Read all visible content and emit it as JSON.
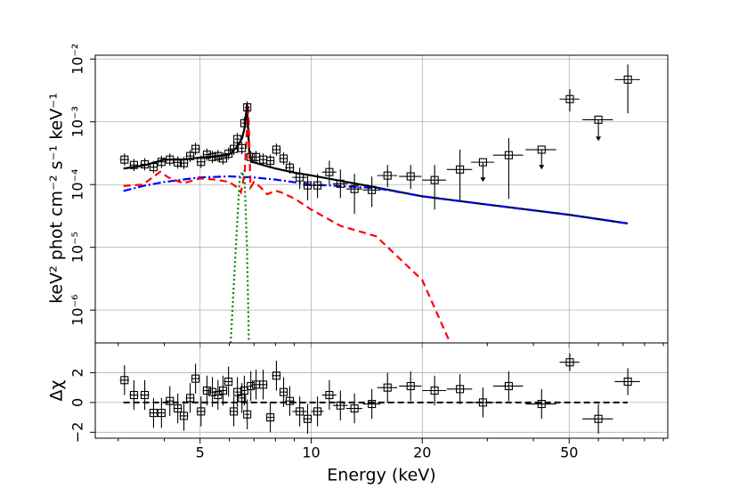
{
  "chart_data": [
    {
      "type": "spectrum",
      "ylabel": "keV² phot cm⁻² s⁻¹ keV⁻¹",
      "log_x": true,
      "log_y": true,
      "grid": true,
      "xlim": [
        2.6,
        92.5
      ],
      "ylim": [
        3e-07,
        0.0115
      ],
      "yticks": [
        {
          "value": 0.01,
          "label": "10⁻²"
        },
        {
          "value": 0.001,
          "label": "10⁻³"
        },
        {
          "value": 0.0001,
          "label": "10⁻⁴"
        },
        {
          "value": 1e-05,
          "label": "10⁻⁵"
        },
        {
          "value": 1e-06,
          "label": "10⁻⁶"
        }
      ],
      "marker_color": "#000000",
      "x": [
        3.12,
        3.31,
        3.54,
        3.74,
        3.93,
        4.14,
        4.35,
        4.52,
        4.7,
        4.86,
        5.03,
        5.22,
        5.4,
        5.59,
        5.77,
        5.97,
        6.17,
        6.31,
        6.49,
        6.59,
        6.71,
        6.86,
        7.09,
        7.41,
        7.75,
        8.05,
        8.42,
        8.75,
        9.31,
        9.78,
        10.4,
        11.2,
        12.0,
        13.1,
        14.6,
        16.1,
        18.6,
        21.6,
        25.3,
        29.2,
        34.3,
        42.1,
        50.2,
        60.0,
        72.1
      ],
      "xerr": [
        0.09,
        0.09,
        0.1,
        0.1,
        0.1,
        0.11,
        0.12,
        0.12,
        0.13,
        0.13,
        0.14,
        0.14,
        0.15,
        0.15,
        0.15,
        0.16,
        0.16,
        0.1,
        0.1,
        0.1,
        0.1,
        0.1,
        0.2,
        0.2,
        0.2,
        0.22,
        0.22,
        0.25,
        0.42,
        0.27,
        0.4,
        0.5,
        0.55,
        0.65,
        0.8,
        1.0,
        1.3,
        1.6,
        2.0,
        2.1,
        3.2,
        4.0,
        3.1,
        5.7,
        5.7
      ],
      "y": [
        0.00025,
        0.000205,
        0.00021,
        0.00019,
        0.00023,
        0.00025,
        0.000225,
        0.00022,
        0.000285,
        0.00037,
        0.00023,
        0.0003,
        0.000275,
        0.000285,
        0.00026,
        0.00031,
        0.00037,
        0.00053,
        0.00038,
        0.00095,
        0.0017,
        0.000275,
        0.000275,
        0.00025,
        0.00024,
        0.00036,
        0.00026,
        0.000186,
        0.00013,
        9.7e-05,
        9.7e-05,
        0.000158,
        0.000103,
        8.5e-05,
        8.2e-05,
        0.000139,
        0.000135,
        0.000118,
        0.000174,
        0.000227,
        0.000294,
        0.00036,
        0.0023,
        0.00108,
        0.0047
      ],
      "y_low": [
        0.0002,
        0.000164,
        0.000168,
        0.000152,
        0.000184,
        0.0002,
        0.00018,
        0.000176,
        0.000228,
        0.000296,
        0.000184,
        0.00024,
        0.00022,
        0.000228,
        0.000208,
        0.000248,
        0.000296,
        0.000424,
        0.000304,
        0.00076,
        0.00136,
        0.00022,
        0.00022,
        0.0002,
        0.000192,
        0.000288,
        0.000208,
        0.000149,
        8.5e-05,
        5.6e-05,
        6.1e-05,
        0.0001,
        6.1e-05,
        3.4e-05,
        4.4e-05,
        9.1e-05,
        8.5e-05,
        4e-05,
        5.6e-05,
        0.000114,
        5.9e-05,
        0.00018,
        0.00146,
        0.00051,
        0.00136
      ],
      "y_high": [
        0.000313,
        0.000256,
        0.000263,
        0.000238,
        0.000288,
        0.000313,
        0.000281,
        0.000275,
        0.000356,
        0.000463,
        0.000288,
        0.000375,
        0.000344,
        0.000356,
        0.000325,
        0.000388,
        0.000463,
        0.000663,
        0.000475,
        0.00119,
        0.00213,
        0.000344,
        0.000344,
        0.000313,
        0.0003,
        0.00045,
        0.000325,
        0.000233,
        0.000186,
        0.000148,
        0.000148,
        0.00024,
        0.000174,
        0.000148,
        0.000134,
        0.000205,
        0.000205,
        0.000205,
        0.00036,
        0.000227,
        0.00055,
        0.00036,
        0.0033,
        0.00108,
        0.0082
      ],
      "upper_limit": [
        false,
        false,
        false,
        false,
        false,
        false,
        false,
        false,
        false,
        false,
        false,
        false,
        false,
        false,
        false,
        false,
        false,
        false,
        false,
        false,
        false,
        false,
        false,
        false,
        false,
        false,
        false,
        false,
        false,
        false,
        false,
        false,
        false,
        false,
        false,
        false,
        false,
        false,
        false,
        true,
        false,
        true,
        false,
        true,
        false
      ],
      "models": [
        {
          "color": "#000000",
          "style": "solid",
          "x": [
            3.1,
            3.5,
            4.0,
            4.5,
            5.0,
            5.5,
            6.0,
            6.3,
            6.5,
            6.6,
            6.7,
            6.8,
            6.9,
            7.1,
            7.5,
            8.0,
            9.0,
            10,
            15,
            20,
            30,
            50,
            72
          ],
          "y": [
            0.00018,
            0.0002,
            0.00025,
            0.00025,
            0.00027,
            0.00028,
            0.0003,
            0.0004,
            0.00055,
            0.0008,
            0.0019,
            0.0003,
            0.00023,
            0.00022,
            0.0002,
            0.00018,
            0.000155,
            0.00014,
            9e-05,
            6.5e-05,
            4.8e-05,
            3.3e-05,
            2.4e-05
          ]
        },
        {
          "color": "#0000ff",
          "style": "dashdot",
          "x": [
            3.1,
            3.5,
            4,
            5,
            6,
            7,
            8,
            10,
            15,
            20,
            30,
            50,
            72
          ],
          "y": [
            7.9e-05,
            9.5e-05,
            0.00011,
            0.00013,
            0.000135,
            0.00013,
            0.00012,
            0.0001,
            8.8e-05,
            6.5e-05,
            4.8e-05,
            3.3e-05,
            2.4e-05
          ]
        },
        {
          "color": "#ff0000",
          "style": "dashed",
          "x": [
            3.1,
            3.5,
            3.9,
            4.1,
            4.5,
            5,
            5.5,
            6,
            6.3,
            6.45,
            6.6,
            6.7,
            6.75,
            6.85,
            7.0,
            7.3,
            7.6,
            8.0,
            8.3,
            9,
            10,
            12,
            15,
            20,
            23.8
          ],
          "y": [
            9.5e-05,
            0.0001,
            0.00016,
            0.00013,
            0.000105,
            0.000125,
            0.00012,
            0.00011,
            9e-05,
            7.5e-05,
            0.00015,
            0.0008,
            0.0019,
            9e-05,
            0.00011,
            9e-05,
            7e-05,
            8e-05,
            7.5e-05,
            6e-05,
            4e-05,
            2.2e-05,
            1.5e-05,
            3e-06,
            3e-07
          ]
        },
        {
          "color": "#008000",
          "style": "dotted",
          "x": [
            6.05,
            6.25,
            6.4,
            6.5,
            6.6,
            6.7,
            6.78
          ],
          "y": [
            3e-07,
            1e-05,
            0.00012,
            0.00016,
            0.00012,
            1e-05,
            3e-07
          ]
        }
      ]
    },
    {
      "type": "residuals",
      "ylabel": "Δχ",
      "xlabel": "Energy (keV)",
      "grid": true,
      "ylim": [
        -2.4,
        4.0
      ],
      "yticks": [
        {
          "value": -2,
          "label": "−2"
        },
        0,
        2
      ],
      "xticks": [
        5,
        10,
        20,
        50
      ],
      "xminor_ticks": [
        3,
        4,
        6,
        7,
        8,
        9,
        30,
        40,
        60,
        70,
        80,
        90
      ],
      "values": [
        1.5,
        0.5,
        0.5,
        -0.7,
        -0.7,
        0.1,
        -0.4,
        -0.9,
        0.3,
        1.6,
        -0.6,
        0.8,
        0.7,
        0.5,
        0.8,
        1.4,
        -0.6,
        0.7,
        0.3,
        0.8,
        -0.8,
        1.1,
        1.2,
        1.2,
        -1.0,
        1.8,
        0.7,
        0.1,
        -0.6,
        -1.1,
        -0.6,
        0.5,
        -0.2,
        -0.4,
        -0.1,
        1.0,
        1.1,
        0.8,
        0.9,
        0.0,
        1.1,
        -0.1,
        2.7,
        -1.1,
        1.4
      ],
      "errors": [
        1.0,
        1.0,
        1.0,
        1.0,
        1.0,
        1.0,
        1.0,
        1.0,
        1.0,
        1.0,
        1.0,
        1.0,
        1.0,
        1.0,
        1.0,
        1.0,
        1.0,
        1.0,
        1.0,
        1.0,
        1.0,
        1.0,
        1.0,
        1.0,
        1.0,
        1.0,
        1.0,
        1.0,
        1.0,
        1.0,
        1.0,
        1.0,
        1.0,
        1.0,
        1.0,
        1.0,
        1.0,
        1.0,
        1.0,
        1.0,
        1.0,
        1.0,
        0.6,
        1.0,
        0.9
      ],
      "reference_line": {
        "x": [
          3.1,
          72
        ],
        "y": 0,
        "color": "#000000"
      }
    }
  ]
}
